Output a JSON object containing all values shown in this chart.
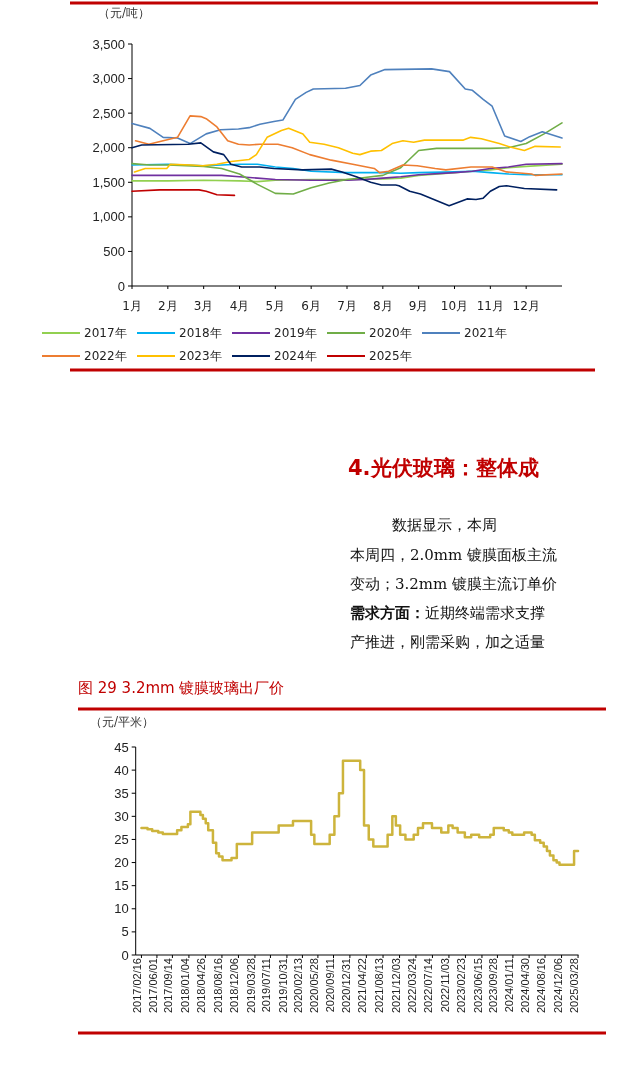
{
  "chart_data": [
    {
      "type": "line",
      "ylabel": "（元/吨）",
      "xlim": [
        1,
        13
      ],
      "xticks": [
        {
          "value": 1,
          "label": "1月"
        },
        {
          "value": 2,
          "label": "2月"
        },
        {
          "value": 3,
          "label": "3月"
        },
        {
          "value": 4,
          "label": "4月"
        },
        {
          "value": 5,
          "label": "5月"
        },
        {
          "value": 6,
          "label": "6月"
        },
        {
          "value": 7,
          "label": "7月"
        },
        {
          "value": 8,
          "label": "8月"
        },
        {
          "value": 9,
          "label": "9月"
        },
        {
          "value": 10,
          "label": "10月"
        },
        {
          "value": 11,
          "label": "11月"
        },
        {
          "value": 12,
          "label": "12月"
        }
      ],
      "ylim": [
        0,
        3500
      ],
      "yticks": [
        {
          "value": 0,
          "label": "0"
        },
        {
          "value": 500,
          "label": "500"
        },
        {
          "value": 1000,
          "label": "1,000"
        },
        {
          "value": 1500,
          "label": "1,500"
        },
        {
          "value": 2000,
          "label": "2,000"
        },
        {
          "value": 2500,
          "label": "2,500"
        },
        {
          "value": 3000,
          "label": "3,000"
        },
        {
          "value": 3500,
          "label": "3,500"
        }
      ],
      "legend": "bottom",
      "series": [
        {
          "name": "2017年",
          "color": "#92d050",
          "x": [
            1,
            2,
            3,
            4,
            4.5,
            5,
            6,
            7,
            8,
            8.5,
            9,
            10,
            10.5,
            11,
            11.5,
            12,
            13
          ],
          "values": [
            1520,
            1520,
            1530,
            1520,
            1510,
            1530,
            1540,
            1540,
            1550,
            1560,
            1600,
            1640,
            1660,
            1680,
            1710,
            1730,
            1760
          ]
        },
        {
          "name": "2018年",
          "color": "#00b0f0",
          "x": [
            1,
            2,
            3,
            4,
            4.5,
            5,
            5.5,
            6,
            7,
            8,
            8.5,
            9,
            10,
            10.5,
            11,
            11.5,
            12,
            13
          ],
          "values": [
            1750,
            1760,
            1740,
            1760,
            1760,
            1720,
            1700,
            1660,
            1640,
            1640,
            1630,
            1640,
            1650,
            1660,
            1640,
            1620,
            1610,
            1610
          ]
        },
        {
          "name": "2019年",
          "color": "#7030a0",
          "x": [
            1,
            2,
            3,
            3.5,
            4,
            4.5,
            5,
            6,
            7,
            7.5,
            8,
            8.5,
            9,
            10,
            10.5,
            11,
            11.5,
            12,
            13
          ],
          "values": [
            1600,
            1600,
            1600,
            1600,
            1580,
            1560,
            1540,
            1530,
            1530,
            1540,
            1560,
            1580,
            1610,
            1640,
            1660,
            1700,
            1720,
            1760,
            1770
          ]
        },
        {
          "name": "2020年",
          "color": "#70ad47",
          "x": [
            1,
            1.5,
            2,
            3,
            3.5,
            4,
            4.5,
            5,
            5.5,
            6,
            6.5,
            7,
            7.5,
            8,
            8.5,
            9,
            9.5,
            10,
            11,
            11.5,
            12,
            12.5,
            13
          ],
          "values": [
            1770,
            1750,
            1750,
            1730,
            1700,
            1620,
            1470,
            1340,
            1330,
            1420,
            1490,
            1540,
            1570,
            1600,
            1710,
            1960,
            1990,
            1990,
            1990,
            2000,
            2060,
            2200,
            2360
          ]
        },
        {
          "name": "2021年",
          "color": "#4f81bd",
          "x": [
            1,
            1.5,
            1.87,
            2.27,
            2.62,
            3.07,
            3.47,
            3.97,
            4.27,
            4.57,
            4.96,
            5.21,
            5.56,
            5.86,
            6.06,
            6.96,
            7.36,
            7.66,
            8.06,
            9.36,
            9.86,
            10.3,
            10.5,
            10.8,
            11.05,
            11.4,
            11.85,
            12.1,
            12.45,
            13
          ],
          "values": [
            2350,
            2280,
            2150,
            2140,
            2060,
            2200,
            2260,
            2270,
            2290,
            2340,
            2380,
            2400,
            2700,
            2800,
            2850,
            2860,
            2900,
            3050,
            3130,
            3140,
            3100,
            2850,
            2830,
            2700,
            2600,
            2170,
            2090,
            2160,
            2230,
            2140
          ]
        },
        {
          "name": "2022年",
          "color": "#ed7d31",
          "x": [
            1.1,
            1.47,
            1.87,
            2.27,
            2.62,
            2.92,
            3.07,
            3.37,
            3.67,
            3.97,
            4.27,
            4.57,
            5.07,
            5.47,
            5.96,
            6.56,
            7.16,
            7.76,
            7.91,
            8.16,
            8.56,
            8.96,
            9.46,
            9.76,
            10.46,
            11.05,
            11.45,
            12.15,
            12.25,
            13
          ],
          "values": [
            2100,
            2050,
            2100,
            2150,
            2460,
            2450,
            2420,
            2300,
            2100,
            2050,
            2040,
            2050,
            2050,
            2000,
            1900,
            1820,
            1760,
            1700,
            1640,
            1660,
            1750,
            1740,
            1700,
            1680,
            1720,
            1720,
            1650,
            1620,
            1600,
            1620
          ]
        },
        {
          "name": "2023年",
          "color": "#ffc000",
          "x": [
            1.07,
            1.37,
            1.97,
            2.07,
            2.67,
            2.97,
            3.37,
            3.77,
            4.27,
            4.47,
            4.77,
            5.17,
            5.37,
            5.77,
            5.96,
            6.36,
            6.76,
            7.16,
            7.36,
            7.66,
            7.96,
            8.26,
            8.56,
            8.86,
            9.16,
            10.25,
            10.45,
            10.75,
            11.25,
            11.55,
            11.95,
            12.25,
            12.95
          ],
          "values": [
            1650,
            1700,
            1700,
            1760,
            1750,
            1740,
            1760,
            1800,
            1830,
            1900,
            2150,
            2250,
            2280,
            2200,
            2080,
            2050,
            2000,
            1920,
            1900,
            1950,
            1960,
            2060,
            2100,
            2080,
            2110,
            2110,
            2150,
            2130,
            2060,
            2010,
            1960,
            2020,
            2010
          ]
        },
        {
          "name": "2024年",
          "color": "#002060",
          "x": [
            1,
            1.27,
            2.57,
            2.92,
            3.27,
            3.56,
            3.76,
            4.06,
            4.56,
            4.96,
            5.76,
            6.56,
            6.86,
            7.26,
            7.66,
            7.96,
            8.36,
            8.45,
            8.75,
            9.05,
            9.85,
            10.35,
            10.6,
            10.8,
            11.0,
            11.25,
            11.45,
            11.95,
            12.85
          ],
          "values": [
            2000,
            2040,
            2050,
            2070,
            1940,
            1900,
            1760,
            1720,
            1720,
            1700,
            1680,
            1690,
            1650,
            1580,
            1500,
            1460,
            1460,
            1450,
            1370,
            1330,
            1160,
            1260,
            1250,
            1270,
            1370,
            1440,
            1450,
            1410,
            1390
          ]
        },
        {
          "name": "2025年",
          "color": "#c00000",
          "x": [
            1,
            1.77,
            2.87,
            3.07,
            3.37,
            3.86
          ],
          "values": [
            1370,
            1390,
            1390,
            1370,
            1320,
            1310
          ]
        }
      ]
    },
    {
      "type": "other",
      "title": "4.光伏玻璃：整体成",
      "annotations": [
        "数据显示，本周",
        "本周四，2.0mm 镀膜面板主流",
        "变动；3.2mm 镀膜主流订单价",
        "**需求方面：**近期终端需求支撑",
        "产推进，刚需采购，加之适量"
      ]
    },
    {
      "type": "step",
      "title": "图 29 3.2mm 镀膜玻璃出厂价",
      "ylabel": "（元/平米）",
      "color": "#cdb43c",
      "xlim": [
        "2017-01-08",
        "2025-03-31"
      ],
      "xticks": [
        {
          "value": "2017-02-16",
          "label": "2017/02/16"
        },
        {
          "value": "2017-06-01",
          "label": "2017/06/01"
        },
        {
          "value": "2017-09-14",
          "label": "2017/09/14"
        },
        {
          "value": "2018-01-04",
          "label": "2018/01/04"
        },
        {
          "value": "2018-04-26",
          "label": "2018/04/26"
        },
        {
          "value": "2018-08-16",
          "label": "2018/08/16"
        },
        {
          "value": "2018-12-06",
          "label": "2018/12/06"
        },
        {
          "value": "2019-03-28",
          "label": "2019/03/28"
        },
        {
          "value": "2019-07-11",
          "label": "2019/07/11"
        },
        {
          "value": "2019-10-31",
          "label": "2019/10/31"
        },
        {
          "value": "2020-02-13",
          "label": "2020/02/13"
        },
        {
          "value": "2020-05-28",
          "label": "2020/05/28"
        },
        {
          "value": "2020-09-11",
          "label": "2020/09/11"
        },
        {
          "value": "2020-12-31",
          "label": "2020/12/31"
        },
        {
          "value": "2021-04-22",
          "label": "2021/04/22"
        },
        {
          "value": "2021-08-13",
          "label": "2021/08/13"
        },
        {
          "value": "2021-12-03",
          "label": "2021/12/03"
        },
        {
          "value": "2022-03-24",
          "label": "2022/03/24"
        },
        {
          "value": "2022-07-14",
          "label": "2022/07/14"
        },
        {
          "value": "2022-11-03",
          "label": "2022/11/03"
        },
        {
          "value": "2023-02-23",
          "label": "2023/02/23"
        },
        {
          "value": "2023-06-15",
          "label": "2023/06/15"
        },
        {
          "value": "2023-09-28",
          "label": "2023/09/28"
        },
        {
          "value": "2024-01-11",
          "label": "2024/01/11"
        },
        {
          "value": "2024-04-30",
          "label": "2024/04/30"
        },
        {
          "value": "2024-08-16",
          "label": "2024/08/16"
        },
        {
          "value": "2024-12-06",
          "label": "2024/12/06"
        },
        {
          "value": "2025-03-28",
          "label": "2025/03/28"
        }
      ],
      "ylim": [
        0,
        45
      ],
      "yticks": [
        0,
        5,
        10,
        15,
        20,
        25,
        30,
        35,
        40,
        45
      ],
      "x": [
        "2017-02-16",
        "2017-03-29",
        "2017-04-30",
        "2017-06-10",
        "2017-07-11",
        "2017-10-16",
        "2017-11-14",
        "2017-12-28",
        "2018-01-14",
        "2018-03-23",
        "2018-04-09",
        "2018-04-28",
        "2018-05-15",
        "2018-06-16",
        "2018-07-08",
        "2018-07-27",
        "2018-08-20",
        "2018-10-20",
        "2018-11-25",
        "2019-03-09",
        "2019-09-05",
        "2019-12-11",
        "2020-04-12",
        "2020-05-04",
        "2020-08-16",
        "2020-09-17",
        "2020-10-18",
        "2020-11-14",
        "2021-03-11",
        "2021-04-06",
        "2021-05-08",
        "2021-06-08",
        "2021-09-13",
        "2021-10-15",
        "2021-11-08",
        "2021-12-07",
        "2022-01-12",
        "2022-03-09",
        "2022-04-07",
        "2022-05-11",
        "2022-07-11",
        "2022-09-12",
        "2022-10-30",
        "2022-11-28",
        "2023-01-01",
        "2023-02-19",
        "2023-04-03",
        "2023-05-27",
        "2023-08-10",
        "2023-09-03",
        "2023-11-10",
        "2023-12-14",
        "2024-01-07",
        "2024-03-27",
        "2024-05-17",
        "2024-06-08",
        "2024-07-14",
        "2024-08-07",
        "2024-08-29",
        "2024-09-18",
        "2024-10-12",
        "2024-11-03",
        "2024-11-22",
        "2025-03-01",
        "2025-03-28"
      ],
      "values": [
        27.5,
        27.2,
        26.8,
        26.5,
        26.2,
        27,
        27.7,
        28.3,
        31,
        30.3,
        29.5,
        28.5,
        27,
        24.3,
        22,
        21.3,
        20.5,
        21,
        24,
        26.5,
        28,
        29,
        26,
        24,
        26,
        30,
        35,
        42,
        40,
        28,
        25,
        23.5,
        26,
        30,
        28,
        26,
        25,
        26,
        27.5,
        28.5,
        27.5,
        26.5,
        28,
        27.5,
        26.5,
        25.5,
        26,
        25.5,
        26,
        27.5,
        27,
        26.5,
        26,
        26.5,
        26,
        24.8,
        24.3,
        23.5,
        22.5,
        21.5,
        20.5,
        20,
        19.5,
        22.5,
        22.5
      ]
    }
  ]
}
